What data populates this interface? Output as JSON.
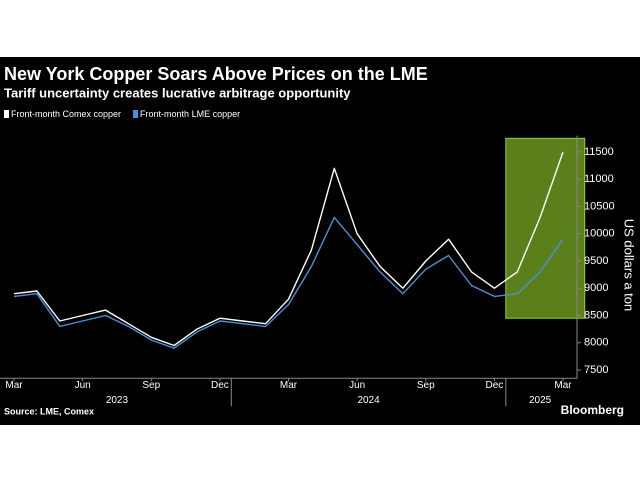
{
  "chart_data": {
    "type": "line",
    "title": "New York Copper Soars Above Prices on the LME",
    "subtitle": "Tariff uncertainty creates lucrative arbitrage opportunity",
    "y_axis_label": "US dollars a ton",
    "source": "Source: LME, Comex",
    "brand": "Bloomberg",
    "x": [
      "2023-03",
      "2023-04",
      "2023-05",
      "2023-06",
      "2023-07",
      "2023-08",
      "2023-09",
      "2023-10",
      "2023-11",
      "2023-12",
      "2024-01",
      "2024-02",
      "2024-03",
      "2024-04",
      "2024-05",
      "2024-06",
      "2024-07",
      "2024-08",
      "2024-09",
      "2024-10",
      "2024-11",
      "2024-12",
      "2025-01",
      "2025-02",
      "2025-03"
    ],
    "xticks": [
      {
        "value": "2023-03",
        "label": "Mar"
      },
      {
        "value": "2023-06",
        "label": "Jun"
      },
      {
        "value": "2023-09",
        "label": "Sep"
      },
      {
        "value": "2023-12",
        "label": "Dec"
      },
      {
        "value": "2024-03",
        "label": "Mar"
      },
      {
        "value": "2024-06",
        "label": "Jun"
      },
      {
        "value": "2024-09",
        "label": "Sep"
      },
      {
        "value": "2024-12",
        "label": "Dec"
      },
      {
        "value": "2025-03",
        "label": "Mar"
      }
    ],
    "years": [
      "2023",
      "2024",
      "2025"
    ],
    "series": [
      {
        "name": "Front-month Comex copper",
        "color": "#ffffff",
        "values": [
          8900,
          8950,
          8400,
          8500,
          8600,
          8350,
          8100,
          7950,
          8250,
          8450,
          8400,
          8350,
          8800,
          9700,
          11200,
          10000,
          9400,
          9000,
          9500,
          9900,
          9300,
          9000,
          9300,
          10300,
          11500
        ]
      },
      {
        "name": "Front-month LME copper",
        "color": "#4a90d9",
        "values": [
          8850,
          8900,
          8300,
          8400,
          8500,
          8300,
          8050,
          7900,
          8200,
          8400,
          8350,
          8300,
          8700,
          9400,
          10300,
          9800,
          9300,
          8900,
          9350,
          9600,
          9050,
          8850,
          8900,
          9300,
          9900
        ]
      }
    ],
    "highlight": {
      "from": "2024-12",
      "to": "2025-03",
      "ylim": [
        8450,
        11750
      ],
      "color": "#5b7f1b"
    },
    "ylim": [
      7350,
      11800
    ],
    "yticks": [
      7500,
      8000,
      8500,
      9000,
      9500,
      10000,
      10500,
      11000,
      11500
    ]
  }
}
